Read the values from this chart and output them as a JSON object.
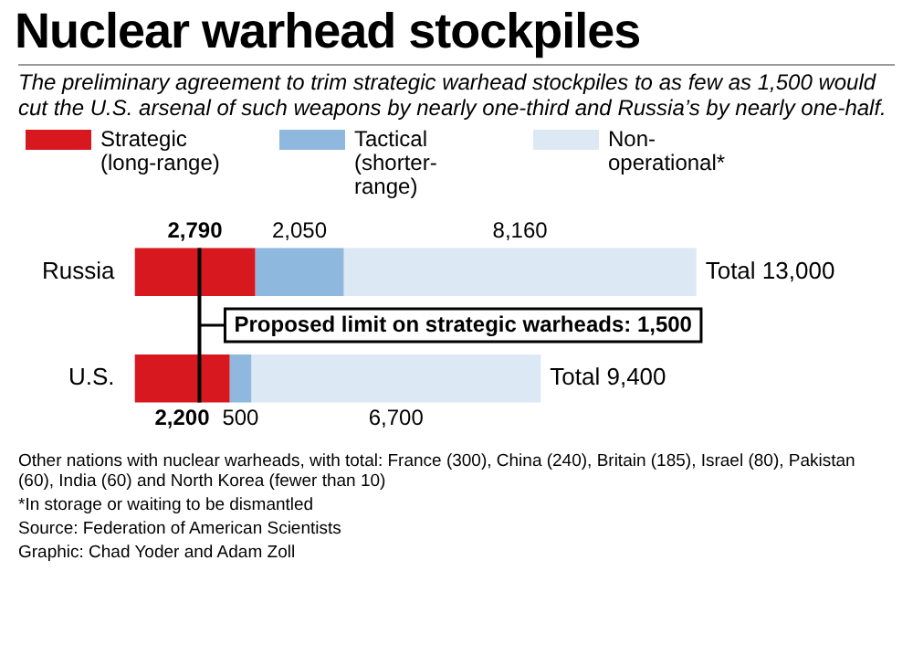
{
  "chart_data": {
    "type": "bar",
    "orientation": "horizontal",
    "stacked": true,
    "title": "Nuclear warhead stockpiles",
    "subtitle": "The preliminary agreement to trim strategic warhead stockpiles to as few as 1,500 would cut the U.S. arsenal of such weapons by nearly one-third and Russia’s by nearly one-half.",
    "categories": [
      "Russia",
      "U.S."
    ],
    "series": [
      {
        "name": "Strategic (long-range)",
        "color": "#d7191f",
        "values": [
          2790,
          2200
        ],
        "value_labels": [
          "2,790",
          "2,200"
        ]
      },
      {
        "name": "Tactical (shorter-range)",
        "color": "#8fb8de",
        "values": [
          2050,
          500
        ],
        "value_labels": [
          "2,050",
          "500"
        ]
      },
      {
        "name": "Non-operational*",
        "color": "#dce8f3",
        "values": [
          8160,
          6700
        ],
        "value_labels": [
          "8,160",
          "6,700"
        ]
      }
    ],
    "totals": [
      "Total 13,000",
      "Total 9,400"
    ],
    "ref_lines": [
      {
        "axis": "x",
        "value": 1500,
        "label": "Proposed limit on strategic warheads: 1,500",
        "color": "#000000"
      }
    ],
    "legend": "top left",
    "tick_labels": "y",
    "annotations": [
      "Other nations with nuclear warheads, with total: France (300), China (240), Britain (185), Israel (80), Pakistan (60), India (60) and North Korea (fewer than 10)",
      "*In storage or waiting to be dismantled",
      "Source: Federation of American Scientists",
      "Graphic: Chad Yoder and Adam Zoll"
    ]
  }
}
